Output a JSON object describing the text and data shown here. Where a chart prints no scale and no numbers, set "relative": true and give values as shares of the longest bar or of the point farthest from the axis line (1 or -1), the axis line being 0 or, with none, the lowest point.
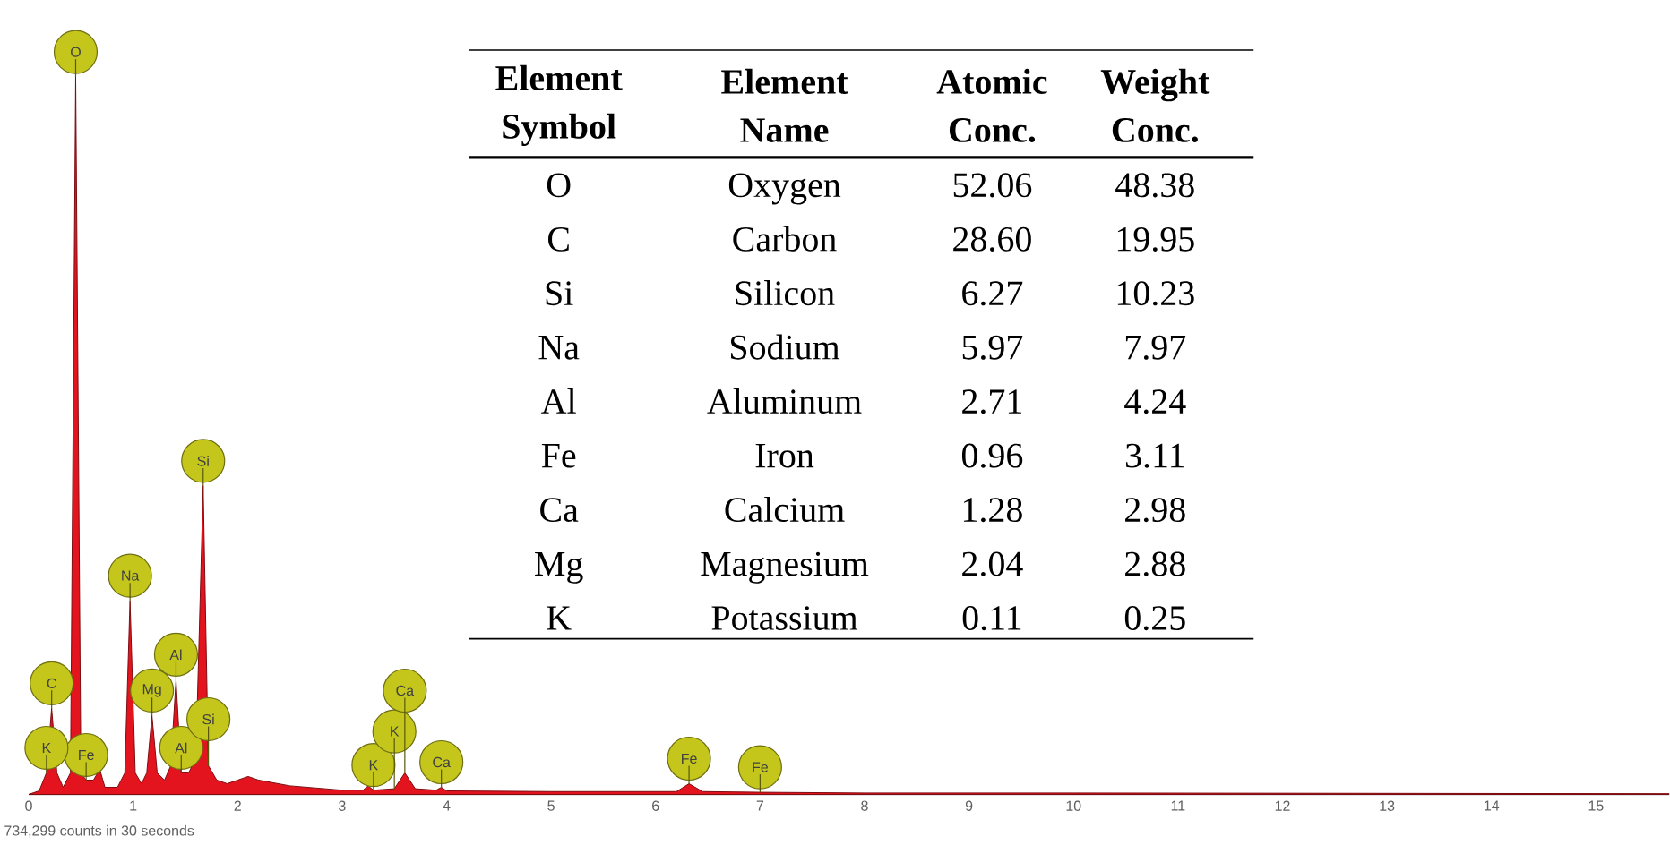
{
  "chart_data": [
    {
      "type": "area",
      "relative": true,
      "color": "#e3141e",
      "xlim": [
        0,
        15.7
      ],
      "xticks": [
        0,
        1,
        2,
        3,
        4,
        5,
        6,
        7,
        8,
        9,
        10,
        11,
        12,
        13,
        14,
        15
      ],
      "x": [
        0,
        0.1,
        0.17,
        0.22,
        0.27,
        0.33,
        0.4,
        0.45,
        0.5,
        0.55,
        0.62,
        0.68,
        0.73,
        0.85,
        0.92,
        0.97,
        1.02,
        1.08,
        1.13,
        1.18,
        1.23,
        1.3,
        1.36,
        1.41,
        1.46,
        1.53,
        1.6,
        1.67,
        1.72,
        1.8,
        1.9,
        2.0,
        2.1,
        2.2,
        2.5,
        3.0,
        3.2,
        3.25,
        3.3,
        3.5,
        3.6,
        3.7,
        3.9,
        3.95,
        4.0,
        5.0,
        6.2,
        6.32,
        6.45,
        7.0,
        8,
        10,
        15.7
      ],
      "values": [
        0,
        0.005,
        0.03,
        0.12,
        0.03,
        0.01,
        0.03,
        1.0,
        0.03,
        0.02,
        0.02,
        0.035,
        0.01,
        0.01,
        0.03,
        0.27,
        0.03,
        0.015,
        0.03,
        0.11,
        0.03,
        0.02,
        0.04,
        0.16,
        0.03,
        0.03,
        0.05,
        0.43,
        0.04,
        0.02,
        0.015,
        0.02,
        0.025,
        0.02,
        0.012,
        0.006,
        0.006,
        0.012,
        0.006,
        0.008,
        0.03,
        0.008,
        0.006,
        0.01,
        0.005,
        0.004,
        0.004,
        0.015,
        0.004,
        0.003,
        0.002,
        0.002,
        0.001
      ],
      "annotations": [
        {
          "text": "O",
          "x": 0.45,
          "y": 1.0
        },
        {
          "text": "Fe",
          "x": 0.55,
          "y": 0.02
        },
        {
          "text": "C",
          "x": 0.22,
          "y": 0.12
        },
        {
          "text": "K",
          "x": 0.17,
          "y": 0.03
        },
        {
          "text": "Na",
          "x": 0.97,
          "y": 0.27
        },
        {
          "text": "Al",
          "x": 1.41,
          "y": 0.16
        },
        {
          "text": "Mg",
          "x": 1.18,
          "y": 0.11
        },
        {
          "text": "Al",
          "x": 1.46,
          "y": 0.03
        },
        {
          "text": "Si",
          "x": 1.72,
          "y": 0.04
        },
        {
          "text": "Si",
          "x": 1.67,
          "y": 0.43
        },
        {
          "text": "K",
          "x": 3.3,
          "y": 0.006
        },
        {
          "text": "K",
          "x": 3.5,
          "y": 0.008
        },
        {
          "text": "Ca",
          "x": 3.6,
          "y": 0.03
        },
        {
          "text": "Ca",
          "x": 3.95,
          "y": 0.01
        },
        {
          "text": "Fe",
          "x": 6.32,
          "y": 0.015
        },
        {
          "text": "Fe",
          "x": 7.0,
          "y": 0.003
        },
        "734,299 counts in 30 seconds"
      ]
    },
    {
      "type": "other",
      "categories": [
        "Element Symbol",
        "Element Name",
        "Atomic Conc.",
        "Weight Conc."
      ],
      "annotations": [
        "O",
        "Oxygen",
        "52.06",
        "48.38",
        "C",
        "Carbon",
        "28.60",
        "19.95",
        "Si",
        "Silicon",
        "6.27",
        "10.23",
        "Na",
        "Sodium",
        "5.97",
        "7.97",
        "Al",
        "Aluminum",
        "2.71",
        "4.24",
        "Fe",
        "Iron",
        "0.96",
        "3.11",
        "Ca",
        "Calcium",
        "1.28",
        "2.98",
        "Mg",
        "Magnesium",
        "2.04",
        "2.88",
        "K",
        "Potassium",
        "0.11",
        "0.25"
      ]
    }
  ]
}
